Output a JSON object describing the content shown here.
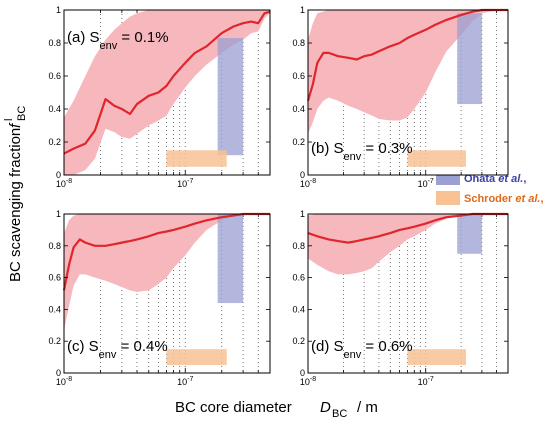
{
  "figure": {
    "ylabel_text": "BC scavenging fraction",
    "ylabel_symbol": "f",
    "ylabel_sup": "l",
    "ylabel_sub": "BC",
    "xlabel_text": "BC core diameter",
    "xlabel_symbol": "D",
    "xlabel_sub": "BC",
    "xlabel_unit": "/ m"
  },
  "legend": [
    {
      "name_plain": "Ohata ",
      "name_italic": "et al.",
      "suffix": ",",
      "color": "#9b9fd2",
      "text_color": "#3a3fa6"
    },
    {
      "name_plain": "Schroder ",
      "name_italic": "et al.",
      "suffix": ",",
      "color": "#f8c294",
      "text_color": "#e06a1a"
    }
  ],
  "colors": {
    "line": "#e0262c",
    "band": "#f6b7bd",
    "ohata": "#9b9fd2",
    "schroder": "#f8c294"
  },
  "chart_data": [
    {
      "type": "line",
      "panel": "(a)",
      "annotation_prefix": "(a) S",
      "annotation_sub": "env",
      "annotation_suffix": " = 0.1%",
      "xscale": "log",
      "xlim": [
        1e-08,
        5e-07
      ],
      "ylim": [
        0,
        1
      ],
      "x_tick_labels": [
        "10^-8",
        "10^-7"
      ],
      "y_tick_labels": [
        "0",
        "0.2",
        "0.4",
        "0.6",
        "0.8",
        "1"
      ],
      "grid": "vertical dotted",
      "x": [
        1e-08,
        1.2e-08,
        1.5e-08,
        1.8e-08,
        2.2e-08,
        2.6e-08,
        3e-08,
        3.5e-08,
        4e-08,
        5e-08,
        6e-08,
        7e-08,
        8e-08,
        1e-07,
        1.2e-07,
        1.5e-07,
        2e-07,
        2.5e-07,
        3e-07,
        3.5e-07,
        4e-07,
        4.5e-07,
        5e-07
      ],
      "y": [
        0.13,
        0.16,
        0.19,
        0.27,
        0.46,
        0.42,
        0.4,
        0.37,
        0.43,
        0.48,
        0.5,
        0.54,
        0.6,
        0.68,
        0.74,
        0.78,
        0.86,
        0.9,
        0.92,
        0.93,
        0.92,
        0.98,
        0.99
      ],
      "y_low": [
        0.0,
        0.0,
        0.03,
        0.1,
        0.28,
        0.26,
        0.23,
        0.22,
        0.25,
        0.3,
        0.33,
        0.36,
        0.43,
        0.53,
        0.6,
        0.67,
        0.74,
        0.79,
        0.82,
        0.86,
        0.87,
        0.95,
        0.98
      ],
      "y_high": [
        0.35,
        0.45,
        0.6,
        0.72,
        0.82,
        0.88,
        0.92,
        0.96,
        0.98,
        1.0,
        1.0,
        1.0,
        1.0,
        1.0,
        1.0,
        1.0,
        1.0,
        1.0,
        1.0,
        1.0,
        1.0,
        1.0,
        1.0
      ],
      "ohata": {
        "xmin": 1.85e-07,
        "xmax": 3e-07,
        "ymin": 0.12,
        "ymax": 0.83
      },
      "schroder": {
        "xmin": 7e-08,
        "xmax": 2.2e-07,
        "ymin": 0.05,
        "ymax": 0.15
      }
    },
    {
      "type": "line",
      "panel": "(b)",
      "annotation_prefix": "(b) S",
      "annotation_sub": "env",
      "annotation_suffix": " = 0.3%",
      "xscale": "log",
      "xlim": [
        1e-08,
        5e-07
      ],
      "ylim": [
        0,
        1
      ],
      "x_tick_labels": [
        "10^-8",
        "10^-7"
      ],
      "y_tick_labels": [
        "0",
        "0.2",
        "0.4",
        "0.6",
        "0.8",
        "1"
      ],
      "grid": "vertical dotted",
      "x": [
        1e-08,
        1.1e-08,
        1.2e-08,
        1.35e-08,
        1.5e-08,
        1.8e-08,
        2.2e-08,
        2.6e-08,
        3e-08,
        3.5e-08,
        4e-08,
        5e-08,
        6e-08,
        7e-08,
        8e-08,
        1e-07,
        1.2e-07,
        1.5e-07,
        2e-07,
        2.5e-07,
        3e-07,
        4e-07,
        5e-07
      ],
      "y": [
        0.45,
        0.55,
        0.68,
        0.74,
        0.74,
        0.72,
        0.71,
        0.7,
        0.72,
        0.73,
        0.75,
        0.78,
        0.8,
        0.83,
        0.85,
        0.88,
        0.91,
        0.94,
        0.97,
        0.99,
        1.0,
        1.0,
        1.0
      ],
      "y_low": [
        0.25,
        0.32,
        0.4,
        0.45,
        0.47,
        0.45,
        0.42,
        0.4,
        0.38,
        0.36,
        0.34,
        0.33,
        0.33,
        0.35,
        0.4,
        0.5,
        0.62,
        0.75,
        0.85,
        0.93,
        0.98,
        1.0,
        1.0
      ],
      "y_high": [
        0.82,
        0.92,
        0.98,
        0.99,
        1.0,
        1.0,
        1.0,
        1.0,
        1.0,
        1.0,
        1.0,
        1.0,
        1.0,
        1.0,
        1.0,
        1.0,
        1.0,
        1.0,
        1.0,
        1.0,
        1.0,
        1.0,
        1.0
      ],
      "ohata": {
        "xmin": 1.85e-07,
        "xmax": 3e-07,
        "ymin": 0.43,
        "ymax": 0.98
      },
      "schroder": {
        "xmin": 7e-08,
        "xmax": 2.2e-07,
        "ymin": 0.05,
        "ymax": 0.15
      }
    },
    {
      "type": "line",
      "panel": "(c)",
      "annotation_prefix": "(c) S",
      "annotation_sub": "env",
      "annotation_suffix": " = 0.4%",
      "xscale": "log",
      "xlim": [
        1e-08,
        5e-07
      ],
      "ylim": [
        0,
        1
      ],
      "x_tick_labels": [
        "10^-8",
        "10^-7"
      ],
      "y_tick_labels": [
        "0",
        "0.2",
        "0.4",
        "0.6",
        "0.8",
        "1"
      ],
      "grid": "vertical dotted",
      "x": [
        1e-08,
        1.1e-08,
        1.2e-08,
        1.35e-08,
        1.5e-08,
        1.8e-08,
        2.2e-08,
        2.6e-08,
        3e-08,
        3.5e-08,
        4e-08,
        5e-08,
        6e-08,
        7e-08,
        8e-08,
        1e-07,
        1.2e-07,
        1.5e-07,
        2e-07,
        2.5e-07,
        3e-07,
        4e-07,
        5e-07
      ],
      "y": [
        0.52,
        0.68,
        0.79,
        0.84,
        0.82,
        0.8,
        0.8,
        0.81,
        0.82,
        0.83,
        0.84,
        0.86,
        0.88,
        0.89,
        0.9,
        0.92,
        0.94,
        0.96,
        0.98,
        0.99,
        1.0,
        1.0,
        1.0
      ],
      "y_low": [
        0.27,
        0.42,
        0.55,
        0.62,
        0.62,
        0.6,
        0.58,
        0.56,
        0.54,
        0.52,
        0.51,
        0.52,
        0.56,
        0.6,
        0.66,
        0.74,
        0.82,
        0.9,
        0.96,
        0.99,
        1.0,
        1.0,
        1.0
      ],
      "y_high": [
        0.88,
        0.96,
        0.99,
        1.0,
        1.0,
        1.0,
        1.0,
        1.0,
        1.0,
        1.0,
        1.0,
        1.0,
        1.0,
        1.0,
        1.0,
        1.0,
        1.0,
        1.0,
        1.0,
        1.0,
        1.0,
        1.0,
        1.0
      ],
      "ohata": {
        "xmin": 1.85e-07,
        "xmax": 3e-07,
        "ymin": 0.44,
        "ymax": 1.0
      },
      "schroder": {
        "xmin": 7e-08,
        "xmax": 2.2e-07,
        "ymin": 0.05,
        "ymax": 0.15
      }
    },
    {
      "type": "line",
      "panel": "(d)",
      "annotation_prefix": "(d) S",
      "annotation_sub": "env",
      "annotation_suffix": " = 0.6%",
      "xscale": "log",
      "xlim": [
        1e-08,
        5e-07
      ],
      "ylim": [
        0,
        1
      ],
      "x_tick_labels": [
        "10^-8",
        "10^-7"
      ],
      "y_tick_labels": [
        "0",
        "0.2",
        "0.4",
        "0.6",
        "0.8",
        "1"
      ],
      "grid": "vertical dotted",
      "x": [
        1e-08,
        1.2e-08,
        1.5e-08,
        1.8e-08,
        2.2e-08,
        2.6e-08,
        3e-08,
        3.5e-08,
        4e-08,
        5e-08,
        6e-08,
        7e-08,
        8e-08,
        1e-07,
        1.2e-07,
        1.5e-07,
        2e-07,
        2.5e-07,
        3e-07,
        4e-07,
        5e-07
      ],
      "y": [
        0.88,
        0.86,
        0.84,
        0.83,
        0.82,
        0.83,
        0.84,
        0.85,
        0.86,
        0.88,
        0.9,
        0.91,
        0.92,
        0.94,
        0.96,
        0.98,
        0.99,
        1.0,
        1.0,
        1.0,
        1.0
      ],
      "y_low": [
        0.72,
        0.68,
        0.64,
        0.62,
        0.62,
        0.63,
        0.64,
        0.66,
        0.7,
        0.76,
        0.8,
        0.84,
        0.86,
        0.9,
        0.94,
        0.97,
        0.99,
        1.0,
        1.0,
        1.0,
        1.0
      ],
      "y_high": [
        0.99,
        1.0,
        1.0,
        1.0,
        1.0,
        1.0,
        1.0,
        1.0,
        1.0,
        1.0,
        1.0,
        1.0,
        1.0,
        1.0,
        1.0,
        1.0,
        1.0,
        1.0,
        1.0,
        1.0,
        1.0
      ],
      "ohata": {
        "xmin": 1.85e-07,
        "xmax": 3e-07,
        "ymin": 0.75,
        "ymax": 1.0
      },
      "schroder": {
        "xmin": 7e-08,
        "xmax": 2.2e-07,
        "ymin": 0.05,
        "ymax": 0.15
      }
    }
  ]
}
